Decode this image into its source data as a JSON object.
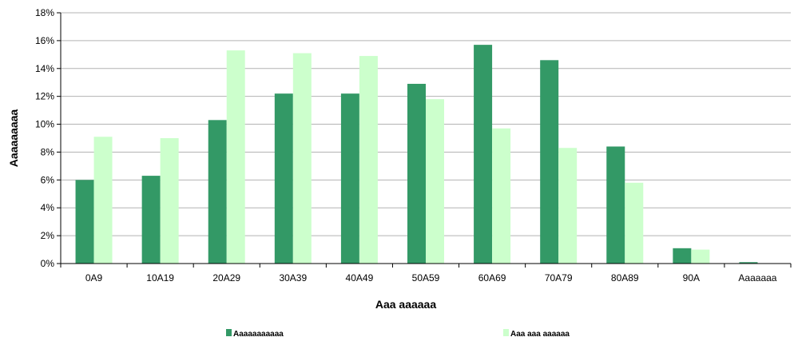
{
  "chart_data": {
    "type": "bar",
    "categories": [
      "0A9",
      "10A19",
      "20A29",
      "30A39",
      "40A49",
      "50A59",
      "60A69",
      "70A79",
      "80A89",
      "90A",
      "Aaaaaaa"
    ],
    "series": [
      {
        "name": "Aaaaaaaaaaa",
        "color": "#339966",
        "values": [
          6.0,
          6.3,
          10.3,
          12.2,
          12.2,
          12.9,
          15.7,
          14.6,
          8.4,
          1.1,
          0.1
        ]
      },
      {
        "name": "Aaa aaa aaaaaa",
        "color": "#ccffcc",
        "values": [
          9.1,
          9.0,
          15.3,
          15.1,
          14.9,
          11.8,
          9.7,
          8.3,
          5.8,
          1.0,
          0.0
        ]
      }
    ],
    "xlabel": "Aaa aaaaaa",
    "ylabel": "Aaaaaaaaa",
    "ylim": [
      0,
      18
    ],
    "yticks": [
      "0%",
      "2%",
      "4%",
      "6%",
      "8%",
      "10%",
      "12%",
      "14%",
      "16%",
      "18%"
    ],
    "ytick_values": [
      0,
      2,
      4,
      6,
      8,
      10,
      12,
      14,
      16,
      18
    ],
    "grid": true,
    "legend_position": "bottom"
  }
}
